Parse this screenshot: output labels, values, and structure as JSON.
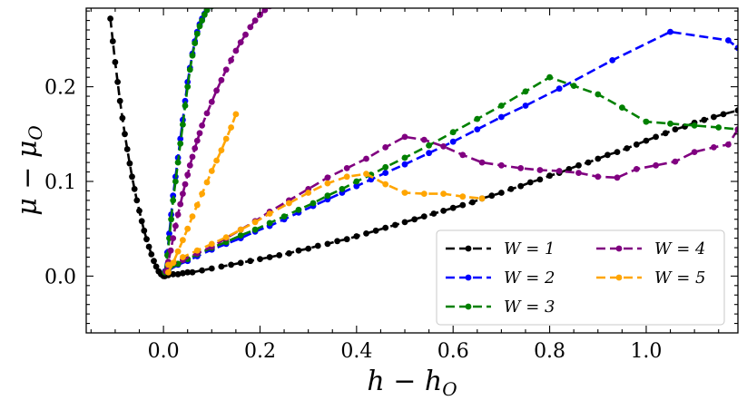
{
  "chart_data": {
    "type": "line",
    "title": "",
    "xlabel": "h − h_O",
    "ylabel": "μ − μ_O",
    "xlim": [
      -0.16,
      1.19
    ],
    "ylim": [
      -0.06,
      0.283
    ],
    "xticks": [
      0.0,
      0.2,
      0.4,
      0.6,
      0.8,
      1.0
    ],
    "xtick_labels": [
      "0.0",
      "0.2",
      "0.4",
      "0.6",
      "0.8",
      "1.0"
    ],
    "yticks": [
      0.0,
      0.1,
      0.2
    ],
    "ytick_labels": [
      "0.0",
      "0.1",
      "0.2"
    ],
    "grid": false,
    "legend_position": "bottom-right",
    "legend_columns": 2,
    "series": [
      {
        "name": "W = 1",
        "color": "#000000",
        "branches": [
          {
            "x": [
              -0.11,
              -0.105,
              -0.1,
              -0.095,
              -0.09,
              -0.085,
              -0.08,
              -0.075,
              -0.07,
              -0.065,
              -0.06,
              -0.055,
              -0.05,
              -0.045,
              -0.04,
              -0.035,
              -0.03,
              -0.025,
              -0.02,
              -0.015,
              -0.01,
              -0.005,
              0.0,
              0.003
            ],
            "y": [
              0.272,
              0.248,
              0.226,
              0.205,
              0.185,
              0.167,
              0.15,
              0.134,
              0.119,
              0.105,
              0.092,
              0.08,
              0.069,
              0.058,
              0.048,
              0.039,
              0.031,
              0.023,
              0.016,
              0.01,
              0.005,
              0.002,
              0.0,
              0.0
            ]
          },
          {
            "x": [
              0.003,
              0.01,
              0.02,
              0.03,
              0.04,
              0.05,
              0.06,
              0.08,
              0.1,
              0.12,
              0.14,
              0.16,
              0.18,
              0.2,
              0.22,
              0.24,
              0.26,
              0.28,
              0.3,
              0.32,
              0.34,
              0.36,
              0.38,
              0.4,
              0.42,
              0.44,
              0.46,
              0.48,
              0.5,
              0.52,
              0.54,
              0.56,
              0.58,
              0.6,
              0.62,
              0.64,
              0.66,
              0.68,
              0.7,
              0.72,
              0.74,
              0.76,
              0.78,
              0.8,
              0.82,
              0.84,
              0.86,
              0.88,
              0.9,
              0.92,
              0.94,
              0.96,
              0.98,
              1.0,
              1.02,
              1.04,
              1.06,
              1.08,
              1.1,
              1.12,
              1.14,
              1.16,
              1.19
            ],
            "y": [
              0.0,
              0.001,
              0.002,
              0.002,
              0.003,
              0.004,
              0.004,
              0.006,
              0.008,
              0.01,
              0.012,
              0.014,
              0.016,
              0.018,
              0.02,
              0.022,
              0.024,
              0.027,
              0.029,
              0.032,
              0.034,
              0.037,
              0.039,
              0.042,
              0.045,
              0.048,
              0.051,
              0.054,
              0.057,
              0.06,
              0.063,
              0.066,
              0.069,
              0.072,
              0.075,
              0.078,
              0.082,
              0.085,
              0.088,
              0.092,
              0.095,
              0.099,
              0.102,
              0.106,
              0.109,
              0.113,
              0.117,
              0.12,
              0.124,
              0.128,
              0.131,
              0.135,
              0.139,
              0.143,
              0.147,
              0.151,
              0.155,
              0.158,
              0.162,
              0.165,
              0.168,
              0.171,
              0.175
            ]
          }
        ]
      },
      {
        "name": "W = 2",
        "color": "#0000ff",
        "branches": [
          {
            "x": [
              0.003,
              0.008,
              0.012,
              0.016,
              0.02,
              0.025,
              0.03,
              0.035,
              0.04,
              0.045,
              0.05,
              0.055,
              0.06,
              0.065,
              0.07,
              0.075,
              0.08,
              0.085,
              0.09,
              0.1
            ],
            "y": [
              0.005,
              0.025,
              0.045,
              0.065,
              0.085,
              0.105,
              0.125,
              0.145,
              0.165,
              0.185,
              0.205,
              0.22,
              0.235,
              0.248,
              0.258,
              0.266,
              0.272,
              0.277,
              0.281,
              0.285
            ]
          },
          {
            "x": [
              0.01,
              0.03,
              0.05,
              0.07,
              0.1,
              0.13,
              0.16,
              0.19,
              0.22,
              0.25,
              0.28,
              0.31,
              0.34,
              0.37,
              0.4,
              0.43,
              0.46,
              0.5,
              0.55,
              0.6,
              0.65,
              0.7,
              0.75,
              0.82,
              0.93,
              1.05,
              1.17,
              1.19
            ],
            "y": [
              0.006,
              0.012,
              0.016,
              0.021,
              0.028,
              0.034,
              0.04,
              0.047,
              0.053,
              0.06,
              0.067,
              0.074,
              0.081,
              0.088,
              0.095,
              0.102,
              0.109,
              0.118,
              0.13,
              0.142,
              0.155,
              0.168,
              0.18,
              0.198,
              0.228,
              0.258,
              0.249,
              0.241
            ]
          }
        ]
      },
      {
        "name": "W = 3",
        "color": "#008000",
        "branches": [
          {
            "x": [
              0.003,
              0.008,
              0.012,
              0.016,
              0.02,
              0.025,
              0.03,
              0.035,
              0.04,
              0.045,
              0.05,
              0.055,
              0.06,
              0.065,
              0.07,
              0.075,
              0.08,
              0.085,
              0.09,
              0.1
            ],
            "y": [
              0.004,
              0.022,
              0.04,
              0.06,
              0.08,
              0.1,
              0.12,
              0.14,
              0.16,
              0.18,
              0.2,
              0.218,
              0.233,
              0.246,
              0.256,
              0.264,
              0.27,
              0.276,
              0.281,
              0.285
            ]
          },
          {
            "x": [
              0.01,
              0.03,
              0.05,
              0.07,
              0.1,
              0.13,
              0.16,
              0.19,
              0.22,
              0.25,
              0.28,
              0.31,
              0.34,
              0.37,
              0.4,
              0.43,
              0.46,
              0.5,
              0.55,
              0.6,
              0.65,
              0.7,
              0.75,
              0.8,
              0.85,
              0.9,
              0.95,
              1.0,
              1.05,
              1.1,
              1.15,
              1.19
            ],
            "y": [
              0.007,
              0.013,
              0.018,
              0.023,
              0.03,
              0.036,
              0.043,
              0.049,
              0.056,
              0.063,
              0.07,
              0.077,
              0.085,
              0.092,
              0.1,
              0.107,
              0.115,
              0.125,
              0.138,
              0.152,
              0.166,
              0.18,
              0.195,
              0.21,
              0.201,
              0.192,
              0.178,
              0.163,
              0.161,
              0.159,
              0.157,
              0.155
            ]
          }
        ]
      },
      {
        "name": "W = 4",
        "color": "#800080",
        "branches": [
          {
            "x": [
              0.005,
              0.01,
              0.015,
              0.02,
              0.025,
              0.03,
              0.035,
              0.04,
              0.045,
              0.05,
              0.055,
              0.06,
              0.065,
              0.07,
              0.075,
              0.08,
              0.09,
              0.1,
              0.11,
              0.12,
              0.13,
              0.14,
              0.15,
              0.16,
              0.17,
              0.18,
              0.19,
              0.2,
              0.21,
              0.22
            ],
            "y": [
              0.005,
              0.015,
              0.027,
              0.04,
              0.053,
              0.065,
              0.076,
              0.087,
              0.097,
              0.107,
              0.117,
              0.126,
              0.135,
              0.143,
              0.151,
              0.159,
              0.172,
              0.184,
              0.196,
              0.207,
              0.218,
              0.228,
              0.238,
              0.247,
              0.255,
              0.263,
              0.27,
              0.276,
              0.281,
              0.285
            ]
          },
          {
            "x": [
              0.01,
              0.04,
              0.07,
              0.1,
              0.13,
              0.16,
              0.19,
              0.22,
              0.26,
              0.3,
              0.34,
              0.38,
              0.42,
              0.46,
              0.5,
              0.54,
              0.58,
              0.62,
              0.66,
              0.7,
              0.74,
              0.78,
              0.82,
              0.86,
              0.9,
              0.94,
              0.98,
              1.02,
              1.06,
              1.1,
              1.14,
              1.17,
              1.19
            ],
            "y": [
              0.01,
              0.017,
              0.024,
              0.031,
              0.04,
              0.049,
              0.058,
              0.068,
              0.08,
              0.092,
              0.104,
              0.114,
              0.124,
              0.136,
              0.147,
              0.144,
              0.137,
              0.128,
              0.12,
              0.117,
              0.114,
              0.112,
              0.111,
              0.109,
              0.105,
              0.104,
              0.113,
              0.117,
              0.121,
              0.131,
              0.136,
              0.139,
              0.155
            ]
          }
        ]
      },
      {
        "name": "W = 5",
        "color": "#ffa500",
        "branches": [
          {
            "x": [
              0.01,
              0.02,
              0.03,
              0.04,
              0.05,
              0.06,
              0.07,
              0.08,
              0.09,
              0.1,
              0.11,
              0.12,
              0.13,
              0.14,
              0.15
            ],
            "y": [
              0.004,
              0.014,
              0.026,
              0.038,
              0.05,
              0.063,
              0.075,
              0.087,
              0.099,
              0.111,
              0.122,
              0.133,
              0.145,
              0.157,
              0.171
            ]
          },
          {
            "x": [
              0.01,
              0.04,
              0.07,
              0.1,
              0.13,
              0.16,
              0.19,
              0.22,
              0.26,
              0.3,
              0.34,
              0.38,
              0.42,
              0.46,
              0.5,
              0.54,
              0.58,
              0.62,
              0.66
            ],
            "y": [
              0.012,
              0.02,
              0.027,
              0.034,
              0.041,
              0.049,
              0.057,
              0.066,
              0.077,
              0.088,
              0.098,
              0.105,
              0.108,
              0.097,
              0.088,
              0.087,
              0.087,
              0.084,
              0.082
            ]
          }
        ]
      }
    ]
  }
}
